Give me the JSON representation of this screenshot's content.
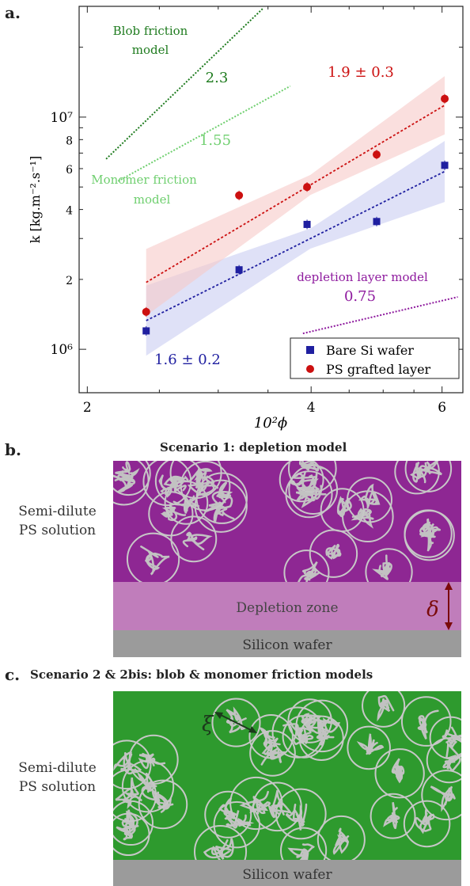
{
  "panels": {
    "a": "a.",
    "b": "b.",
    "c": "c."
  },
  "chart_data": {
    "type": "scatter",
    "xlabel": "10²ϕ",
    "ylabel": "k [kg.m⁻².s⁻¹]",
    "x_scale": "log",
    "y_scale": "log",
    "xlim": [
      1.95,
      6.4
    ],
    "ylim": [
      650000,
      30000000
    ],
    "x_ticks": [
      {
        "v": 2,
        "label": "2"
      },
      {
        "v": 4,
        "label": "4"
      },
      {
        "v": 6,
        "label": "6"
      }
    ],
    "y_ticks": [
      {
        "v": 1000000,
        "label": "10⁶",
        "major": true
      },
      {
        "v": 2000000,
        "label": "2",
        "major": false
      },
      {
        "v": 4000000,
        "label": "4",
        "major": false
      },
      {
        "v": 6000000,
        "label": "6",
        "major": false
      },
      {
        "v": 8000000,
        "label": "8",
        "major": false
      },
      {
        "v": 10000000,
        "label": "10⁷",
        "major": true
      }
    ],
    "series": [
      {
        "name": "Bare Si wafer",
        "marker": "square",
        "color": "#1f1fa0",
        "band_color": "#c9cdf2",
        "x": [
          2.4,
          3.2,
          3.95,
          4.9,
          6.05
        ],
        "y": [
          1200000,
          2200000,
          3450000,
          3550000,
          6200000
        ],
        "fit_slope": 1.6,
        "fit_label": "1.6 ± 0.2"
      },
      {
        "name": "PS grafted layer",
        "marker": "circle",
        "color": "#cc1010",
        "band_color": "#f6c9c8",
        "x": [
          2.4,
          3.2,
          3.95,
          4.9,
          6.05
        ],
        "y": [
          1450000,
          4600000,
          5000000,
          6900000,
          12000000
        ],
        "fit_slope": 1.9,
        "fit_label": "1.9 ± 0.3"
      }
    ],
    "models": [
      {
        "name": "Blob friction model",
        "slope": 2.3,
        "slope_label": "2.3",
        "color": "#1e7b1e"
      },
      {
        "name": "Monomer friction model",
        "slope": 1.55,
        "slope_label": "1.55",
        "color": "#6fcf6f"
      },
      {
        "name": "depletion layer model",
        "slope": 0.75,
        "slope_label": "0.75",
        "color": "#8e1a9e"
      }
    ],
    "model_text": {
      "blob_line1": "Blob friction",
      "blob_line2": "model",
      "monomer_line1": "Monomer friction",
      "monomer_line2": "model",
      "depletion": "depletion layer model"
    },
    "legend_position": "bottom-right"
  },
  "scenario_b": {
    "title": "Scenario 1: depletion model",
    "side_line1": "Semi-dilute",
    "side_line2": "PS solution",
    "depletion_label": "Depletion zone",
    "delta_symbol": "δ",
    "wafer_label": "Silicon wafer",
    "solution_color": "#8e2793",
    "depletion_color": "#c07dbb",
    "wafer_color": "#9b9b9b"
  },
  "scenario_c": {
    "title": "Scenario 2 & 2bis: blob & monomer friction models",
    "side_line1": "Semi-dilute",
    "side_line2": "PS solution",
    "xi_symbol": "ξ",
    "wafer_label": "Silicon wafer",
    "solution_color": "#2e9a2e",
    "wafer_color": "#9b9b9b"
  }
}
